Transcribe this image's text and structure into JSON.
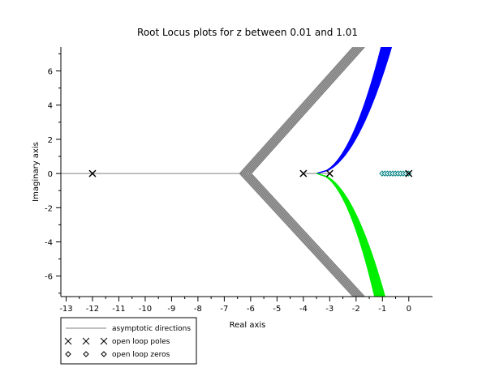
{
  "chart_data": {
    "type": "line",
    "title": "Root Locus plots for z between 0.01 and 1.01",
    "xlabel": "Real axis",
    "ylabel": "Imaginary axis",
    "xlim": [
      -13.2,
      0.9
    ],
    "ylim": [
      -7.2,
      7.4
    ],
    "x_ticks": [
      -13,
      -12,
      -11,
      -10,
      -9,
      -8,
      -7,
      -6,
      -5,
      -4,
      -3,
      -2,
      -1,
      0
    ],
    "y_ticks": [
      -6,
      -4,
      -2,
      0,
      2,
      4,
      6
    ],
    "x_tick_labels": [
      "-13",
      "-12",
      "-11",
      "-10",
      "-9",
      "-8",
      "-7",
      "-6",
      "-5",
      "-4",
      "-3",
      "-2",
      "-1",
      "0"
    ],
    "y_tick_labels": [
      "-6",
      "-4",
      "-2",
      "0",
      "2",
      "4",
      "6"
    ],
    "asymptote_centroid": [
      -6.2,
      0
    ],
    "asymptotes": [
      {
        "from": [
          -6.2,
          0
        ],
        "to": [
          -1.9,
          7.4
        ]
      },
      {
        "from": [
          -6.2,
          0
        ],
        "to": [
          -1.9,
          -7.2
        ]
      }
    ],
    "open_loop_poles": [
      {
        "x": -12,
        "y": 0
      },
      {
        "x": -4,
        "y": 0
      },
      {
        "x": -3,
        "y": 0
      },
      {
        "x": 0,
        "y": 0
      }
    ],
    "open_loop_zeros": [
      {
        "x": -1.01,
        "y": 0
      },
      {
        "x": -0.91,
        "y": 0
      },
      {
        "x": -0.81,
        "y": 0
      },
      {
        "x": -0.71,
        "y": 0
      },
      {
        "x": -0.61,
        "y": 0
      },
      {
        "x": -0.51,
        "y": 0
      },
      {
        "x": -0.41,
        "y": 0
      },
      {
        "x": -0.31,
        "y": 0
      },
      {
        "x": -0.21,
        "y": 0
      },
      {
        "x": -0.11,
        "y": 0
      },
      {
        "x": -0.01,
        "y": 0
      }
    ],
    "branches": [
      {
        "color": "#0000ff",
        "start": [
          -3.5,
          0
        ],
        "end": [
          -0.65,
          7.4
        ],
        "end_range_x": [
          -1.05,
          -0.65
        ]
      },
      {
        "color": "#00ee00",
        "start": [
          -3.5,
          0
        ],
        "end": [
          -0.9,
          -7.2
        ],
        "end_range_x": [
          -1.3,
          -0.9
        ]
      }
    ],
    "real_axis_segments": [
      {
        "from": [
          -13.2,
          0
        ],
        "to": [
          -6.2,
          0
        ]
      },
      {
        "from": [
          -4,
          0
        ],
        "to": [
          -3,
          0
        ]
      }
    ],
    "grid": false,
    "legend": {
      "placement": "bottom-left",
      "entries": [
        {
          "label": "asymptotic directions",
          "marker": "line",
          "color": "#808080"
        },
        {
          "label": "open loop poles",
          "marker": "x"
        },
        {
          "label": "open loop zeros",
          "marker": "diamond"
        }
      ]
    }
  }
}
